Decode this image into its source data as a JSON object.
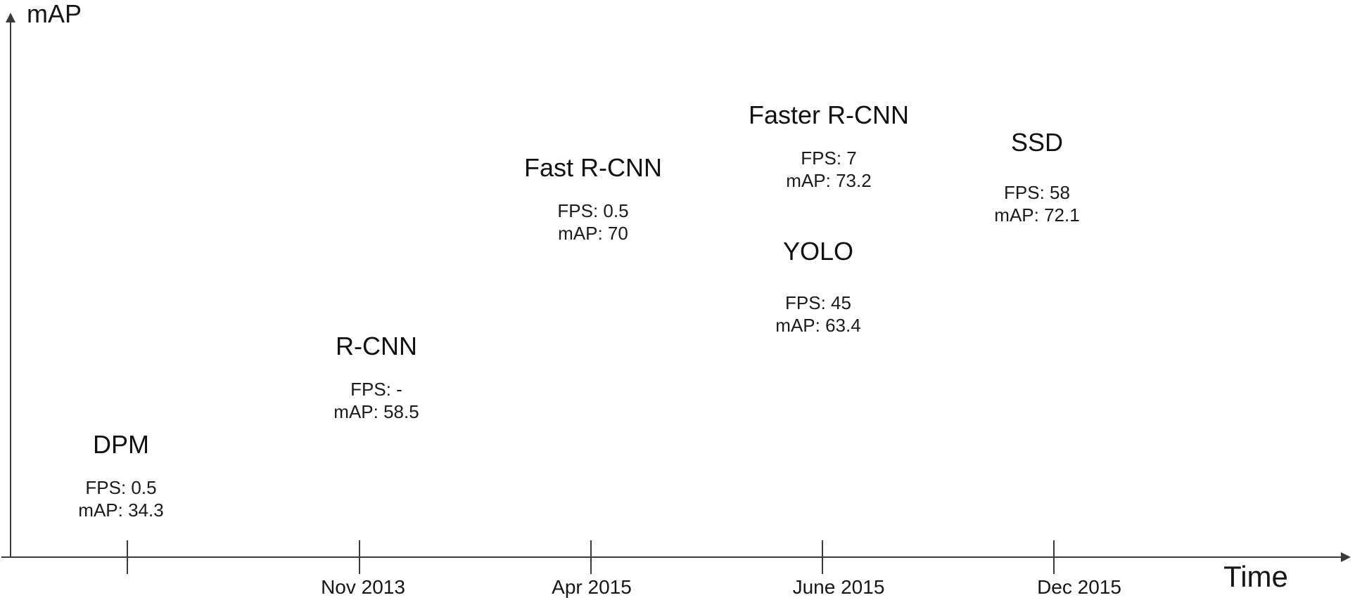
{
  "figure": {
    "background_color": "#ffffff",
    "line_color": "#3a3a3a",
    "text_color": "#141414"
  },
  "axes": {
    "y_label": "mAP",
    "x_label": "Time",
    "tick_labels": [
      "Nov 2013",
      "Apr 2015",
      "June 2015",
      "Dec 2015"
    ]
  },
  "models": [
    {
      "name": "DPM",
      "fps_line": "FPS: 0.5",
      "map_line": "mAP: 34.3"
    },
    {
      "name": "R-CNN",
      "fps_line": "FPS: -",
      "map_line": "mAP: 58.5"
    },
    {
      "name": "Fast R-CNN",
      "fps_line": "FPS: 0.5",
      "map_line": "mAP: 70"
    },
    {
      "name": "Faster R-CNN",
      "fps_line": "FPS: 7",
      "map_line": "mAP: 73.2"
    },
    {
      "name": "YOLO",
      "fps_line": "FPS: 45",
      "map_line": "mAP: 63.4"
    },
    {
      "name": "SSD",
      "fps_line": "FPS: 58",
      "map_line": "mAP: 72.1"
    }
  ],
  "chart_data": {
    "type": "scatter",
    "title": "",
    "xlabel": "Time",
    "ylabel": "mAP",
    "x_ticks": [
      "Nov 2013",
      "Apr 2015",
      "June 2015",
      "Dec 2015"
    ],
    "grid": false,
    "legend": false,
    "points": [
      {
        "name": "DPM",
        "fps": 0.5,
        "mAP": 34.3,
        "x_tick": null
      },
      {
        "name": "R-CNN",
        "fps": "-",
        "mAP": 58.5,
        "x_tick": "Nov 2013"
      },
      {
        "name": "Fast R-CNN",
        "fps": 0.5,
        "mAP": 70,
        "x_tick": "Apr 2015"
      },
      {
        "name": "Faster R-CNN",
        "fps": 7,
        "mAP": 73.2,
        "x_tick": "June 2015"
      },
      {
        "name": "YOLO",
        "fps": 45,
        "mAP": 63.4,
        "x_tick": "June 2015"
      },
      {
        "name": "SSD",
        "fps": 58,
        "mAP": 72.1,
        "x_tick": "Dec 2015"
      }
    ]
  }
}
